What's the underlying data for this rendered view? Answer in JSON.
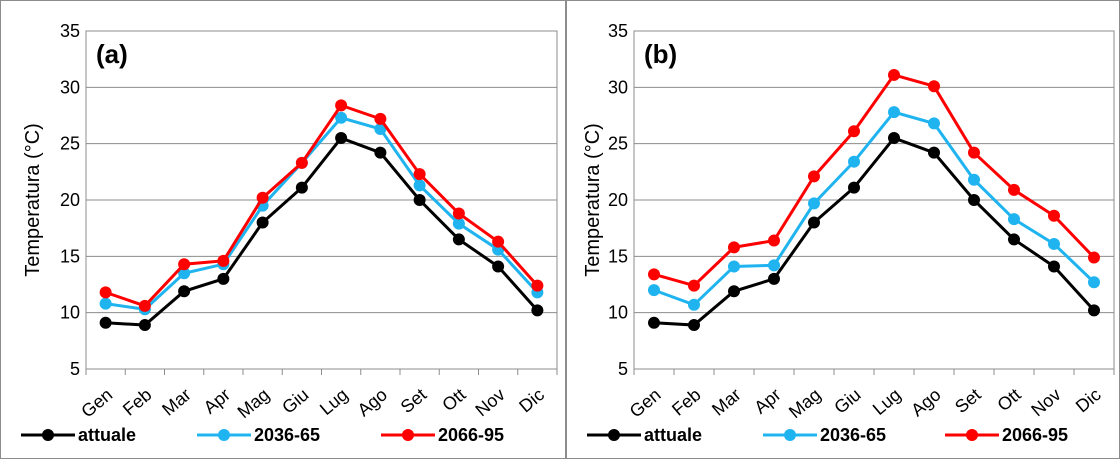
{
  "chart_data": [
    {
      "type": "line",
      "panel_label": "(a)",
      "ylabel": "Temperatura (°C)",
      "ylim": [
        5,
        35
      ],
      "yticks": [
        5,
        10,
        15,
        20,
        25,
        30,
        35
      ],
      "grid": true,
      "legend_position": "bottom",
      "categories": [
        "Gen",
        "Feb",
        "Mar",
        "Apr",
        "Mag",
        "Giu",
        "Lug",
        "Ago",
        "Set",
        "Ott",
        "Nov",
        "Dic"
      ],
      "series": [
        {
          "name": "attuale",
          "color": "#000000",
          "values": [
            9.1,
            8.9,
            11.9,
            13.0,
            18.0,
            21.1,
            25.5,
            24.2,
            20.0,
            16.5,
            14.1,
            10.2
          ]
        },
        {
          "name": "2036-65",
          "color": "#1fb4ef",
          "values": [
            10.8,
            10.3,
            13.5,
            14.3,
            19.5,
            23.3,
            27.3,
            26.3,
            21.3,
            17.9,
            15.6,
            11.8
          ]
        },
        {
          "name": "2066-95",
          "color": "#ff0000",
          "values": [
            11.8,
            10.6,
            14.3,
            14.6,
            20.2,
            23.3,
            28.4,
            27.2,
            22.3,
            18.8,
            16.3,
            12.4
          ]
        }
      ]
    },
    {
      "type": "line",
      "panel_label": "(b)",
      "ylabel": "Temperatura (°C)",
      "ylim": [
        5,
        35
      ],
      "yticks": [
        5,
        10,
        15,
        20,
        25,
        30,
        35
      ],
      "grid": true,
      "legend_position": "bottom",
      "categories": [
        "Gen",
        "Feb",
        "Mar",
        "Apr",
        "Mag",
        "Giu",
        "Lug",
        "Ago",
        "Set",
        "Ott",
        "Nov",
        "Dic"
      ],
      "series": [
        {
          "name": "attuale",
          "color": "#000000",
          "values": [
            9.1,
            8.9,
            11.9,
            13.0,
            18.0,
            21.1,
            25.5,
            24.2,
            20.0,
            16.5,
            14.1,
            10.2
          ]
        },
        {
          "name": "2036-65",
          "color": "#1fb4ef",
          "values": [
            12.0,
            10.7,
            14.1,
            14.2,
            19.7,
            23.4,
            27.8,
            26.8,
            21.8,
            18.3,
            16.1,
            12.7
          ]
        },
        {
          "name": "2066-95",
          "color": "#ff0000",
          "values": [
            13.4,
            12.4,
            15.8,
            16.4,
            22.1,
            26.1,
            31.1,
            30.1,
            24.2,
            20.9,
            18.6,
            14.9
          ]
        }
      ]
    }
  ]
}
